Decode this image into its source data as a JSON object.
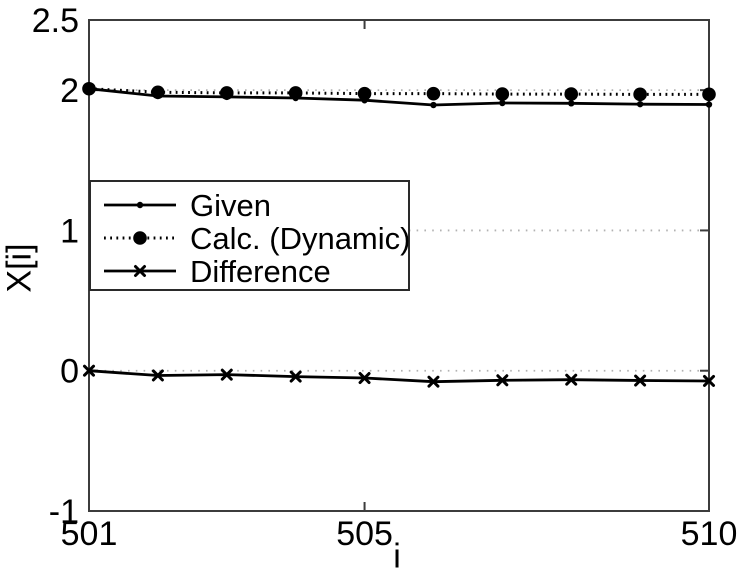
{
  "chart_data": {
    "type": "line",
    "title": "",
    "xlabel": "i",
    "ylabel": "X[i]",
    "xlim": [
      501,
      510
    ],
    "ylim": [
      -1,
      2.5
    ],
    "x": [
      501,
      502,
      503,
      504,
      505,
      506,
      507,
      508,
      509,
      510
    ],
    "series": [
      {
        "name": "Given",
        "line": "solid",
        "marker": "dot-small",
        "values": [
          2.01,
          1.958,
          1.952,
          1.944,
          1.928,
          1.894,
          1.908,
          1.906,
          1.9,
          1.898
        ]
      },
      {
        "name": "Calc. (Dynamic)",
        "line": "dotted",
        "marker": "dot-large",
        "values": [
          2.01,
          1.985,
          1.98,
          1.98,
          1.975,
          1.975,
          1.972,
          1.972,
          1.97,
          1.97
        ]
      },
      {
        "name": "Difference",
        "line": "solid",
        "marker": "x",
        "values": [
          0.0,
          -0.034,
          -0.028,
          -0.042,
          -0.052,
          -0.078,
          -0.068,
          -0.064,
          -0.07,
          -0.073
        ]
      }
    ],
    "xticks": [
      501,
      505,
      510
    ],
    "xtick_labels": [
      "501",
      "505",
      "510"
    ],
    "yticks": [
      2.5,
      2,
      1,
      0,
      -1
    ],
    "ytick_labels": [
      "2.5",
      "2",
      "1",
      "0",
      "-1"
    ],
    "grid": {
      "horizontal_at": [
        2,
        1,
        0
      ],
      "style": "dotted",
      "vertical": false
    },
    "legend": {
      "position": "center-left",
      "entries": [
        "Given",
        "Calc. (Dynamic)",
        "Difference"
      ]
    },
    "colors": {
      "series": "#000000",
      "grid": "#b2b2b2",
      "axis": "#3c3c3c",
      "background": "#ffffff",
      "legend_border": "#2a2a2a"
    }
  }
}
